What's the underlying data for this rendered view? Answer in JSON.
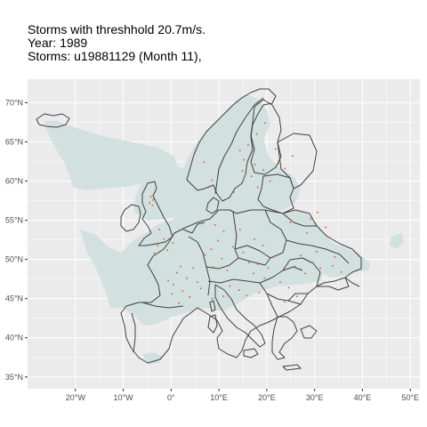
{
  "title": {
    "line1": "Storms with threshhold 20.7m/s.",
    "line2": "Year: 1989",
    "line3": "Storms: u19881129 (Month 11),"
  },
  "chart_data": {
    "type": "scatter",
    "xlabel": "",
    "ylabel": "",
    "xlim": [
      -30,
      52
    ],
    "ylim": [
      33.5,
      73
    ],
    "grid": true,
    "x_ticks": [
      {
        "value": -20,
        "label": "20°W"
      },
      {
        "value": -10,
        "label": "10°W"
      },
      {
        "value": 0,
        "label": "0°"
      },
      {
        "value": 10,
        "label": "10°E"
      },
      {
        "value": 20,
        "label": "20°E"
      },
      {
        "value": 30,
        "label": "30°E"
      },
      {
        "value": 40,
        "label": "40°E"
      },
      {
        "value": 50,
        "label": "50°E"
      }
    ],
    "y_ticks": [
      {
        "value": 35,
        "label": "35°N"
      },
      {
        "value": 40,
        "label": "40°N"
      },
      {
        "value": 45,
        "label": "45°N"
      },
      {
        "value": 50,
        "label": "50°N"
      },
      {
        "value": 55,
        "label": "55°N"
      },
      {
        "value": 60,
        "label": "60°N"
      },
      {
        "value": 65,
        "label": "65°N"
      },
      {
        "value": 70,
        "label": "70°N"
      }
    ],
    "colors": {
      "panel": "#ebebeb",
      "grid": "#ffffff",
      "footprint": "#d3e0e0",
      "borders": "#404040",
      "storm_points": "#e8591a"
    },
    "storm_points": [
      {
        "lon": -4.2,
        "lat": 58.0
      },
      {
        "lon": -3.8,
        "lat": 57.6
      },
      {
        "lon": -4.5,
        "lat": 57.2
      },
      {
        "lon": -3.9,
        "lat": 56.9
      },
      {
        "lon": -2.5,
        "lat": 53.8
      },
      {
        "lon": -1.5,
        "lat": 52.6
      },
      {
        "lon": -2.8,
        "lat": 51.8
      },
      {
        "lon": 0.4,
        "lat": 52.1
      },
      {
        "lon": -0.8,
        "lat": 51.2
      },
      {
        "lon": -3.5,
        "lat": 50.8
      },
      {
        "lon": 2.0,
        "lat": 49.1
      },
      {
        "lon": 1.2,
        "lat": 48.3
      },
      {
        "lon": 3.3,
        "lat": 47.6
      },
      {
        "lon": 0.5,
        "lat": 46.8
      },
      {
        "lon": 2.4,
        "lat": 46.0
      },
      {
        "lon": 3.9,
        "lat": 45.2
      },
      {
        "lon": 1.6,
        "lat": 44.4
      },
      {
        "lon": 0.2,
        "lat": 45.6
      },
      {
        "lon": -0.6,
        "lat": 47.3
      },
      {
        "lon": 4.6,
        "lat": 48.9
      },
      {
        "lon": 5.5,
        "lat": 47.1
      },
      {
        "lon": 6.2,
        "lat": 46.3
      },
      {
        "lon": 7.1,
        "lat": 50.6
      },
      {
        "lon": 8.4,
        "lat": 51.3
      },
      {
        "lon": 9.8,
        "lat": 52.4
      },
      {
        "lon": 10.6,
        "lat": 50.1
      },
      {
        "lon": 8.9,
        "lat": 49.0
      },
      {
        "lon": 11.7,
        "lat": 48.6
      },
      {
        "lon": 12.9,
        "lat": 51.6
      },
      {
        "lon": 13.6,
        "lat": 52.8
      },
      {
        "lon": 11.0,
        "lat": 53.6
      },
      {
        "lon": 9.2,
        "lat": 54.4
      },
      {
        "lon": 15.1,
        "lat": 50.9
      },
      {
        "lon": 16.3,
        "lat": 49.6
      },
      {
        "lon": 18.1,
        "lat": 49.4
      },
      {
        "lon": 17.2,
        "lat": 48.2
      },
      {
        "lon": 19.5,
        "lat": 47.6
      },
      {
        "lon": 20.3,
        "lat": 48.9
      },
      {
        "lon": 21.4,
        "lat": 50.3
      },
      {
        "lon": 19.2,
        "lat": 51.8
      },
      {
        "lon": 17.4,
        "lat": 52.6
      },
      {
        "lon": 14.4,
        "lat": 53.8
      },
      {
        "lon": 12.3,
        "lat": 46.6
      },
      {
        "lon": 14.2,
        "lat": 46.1
      },
      {
        "lon": 15.8,
        "lat": 45.4
      },
      {
        "lon": 18.4,
        "lat": 45.8
      },
      {
        "lon": 10.9,
        "lat": 45.3
      },
      {
        "lon": 8.6,
        "lat": 45.0
      },
      {
        "lon": 22.8,
        "lat": 47.1
      },
      {
        "lon": 24.6,
        "lat": 46.4
      },
      {
        "lon": 26.3,
        "lat": 45.3
      },
      {
        "lon": 23.7,
        "lat": 44.6
      },
      {
        "lon": 25.9,
        "lat": 49.1
      },
      {
        "lon": 28.0,
        "lat": 48.2
      },
      {
        "lon": 27.1,
        "lat": 50.5
      },
      {
        "lon": 29.6,
        "lat": 49.6
      },
      {
        "lon": 31.2,
        "lat": 48.9
      },
      {
        "lon": 33.8,
        "lat": 49.2
      },
      {
        "lon": 30.4,
        "lat": 51.0
      },
      {
        "lon": 34.2,
        "lat": 50.3
      },
      {
        "lon": 35.6,
        "lat": 48.4
      },
      {
        "lon": 32.3,
        "lat": 54.1
      },
      {
        "lon": 29.2,
        "lat": 55.2
      },
      {
        "lon": 30.6,
        "lat": 56.0
      },
      {
        "lon": 28.4,
        "lat": 53.4
      },
      {
        "lon": 24.9,
        "lat": 54.7
      },
      {
        "lon": 33.1,
        "lat": 52.8
      },
      {
        "lon": 14.4,
        "lat": 63.9
      },
      {
        "lon": 15.2,
        "lat": 62.7
      },
      {
        "lon": 16.1,
        "lat": 64.6
      },
      {
        "lon": 17.5,
        "lat": 62.1
      },
      {
        "lon": 14.9,
        "lat": 61.3
      },
      {
        "lon": 16.8,
        "lat": 60.6
      },
      {
        "lon": 19.3,
        "lat": 61.4
      },
      {
        "lon": 20.7,
        "lat": 60.0
      },
      {
        "lon": 18.1,
        "lat": 59.2
      },
      {
        "lon": 8.6,
        "lat": 60.1
      },
      {
        "lon": 10.2,
        "lat": 61.8
      },
      {
        "lon": 6.9,
        "lat": 62.4
      },
      {
        "lon": 13.1,
        "lat": 58.6
      },
      {
        "lon": 22.4,
        "lat": 62.2
      },
      {
        "lon": 23.8,
        "lat": 61.6
      },
      {
        "lon": 21.8,
        "lat": 64.1
      },
      {
        "lon": 25.4,
        "lat": 63.2
      },
      {
        "lon": 17.9,
        "lat": 66.0
      },
      {
        "lon": 19.6,
        "lat": 67.4
      }
    ]
  }
}
